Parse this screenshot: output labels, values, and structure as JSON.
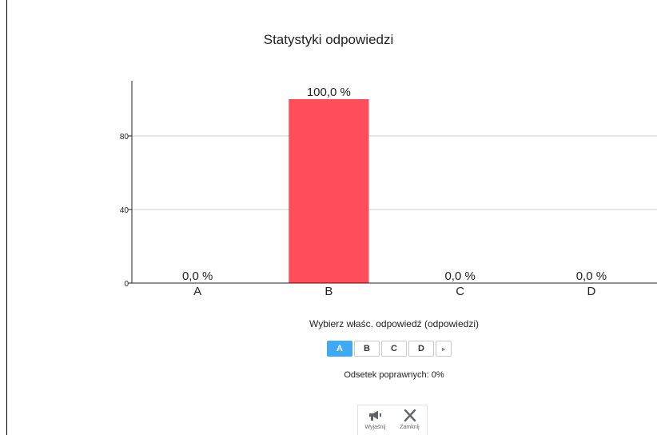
{
  "chart_data": {
    "type": "bar",
    "title": "Statystyki odpowiedzi",
    "categories": [
      "A",
      "B",
      "C",
      "D"
    ],
    "values": [
      0,
      100,
      0,
      0
    ],
    "value_labels": [
      "0,0 %",
      "100,0 %",
      "0,0 %",
      "0,0 %"
    ],
    "yticks": [
      "0",
      "40",
      "80"
    ],
    "ylim": [
      0,
      110
    ],
    "grid": true,
    "bar_color": "#ff4d5a"
  },
  "prompt": "Wybierz właśc. odpowiedź (odpowiedzi)",
  "choices": [
    {
      "label": "A",
      "selected": true
    },
    {
      "label": "B",
      "selected": false
    },
    {
      "label": "C",
      "selected": false
    },
    {
      "label": "D",
      "selected": false
    }
  ],
  "next_icon": "▸",
  "percent_correct": "Odsetek poprawnych: 0%",
  "toolbar": {
    "explain_label": "Wyjaśnij",
    "explain_icon": "megaphone-icon",
    "close_label": "Zamknij",
    "close_icon": "close-icon"
  }
}
